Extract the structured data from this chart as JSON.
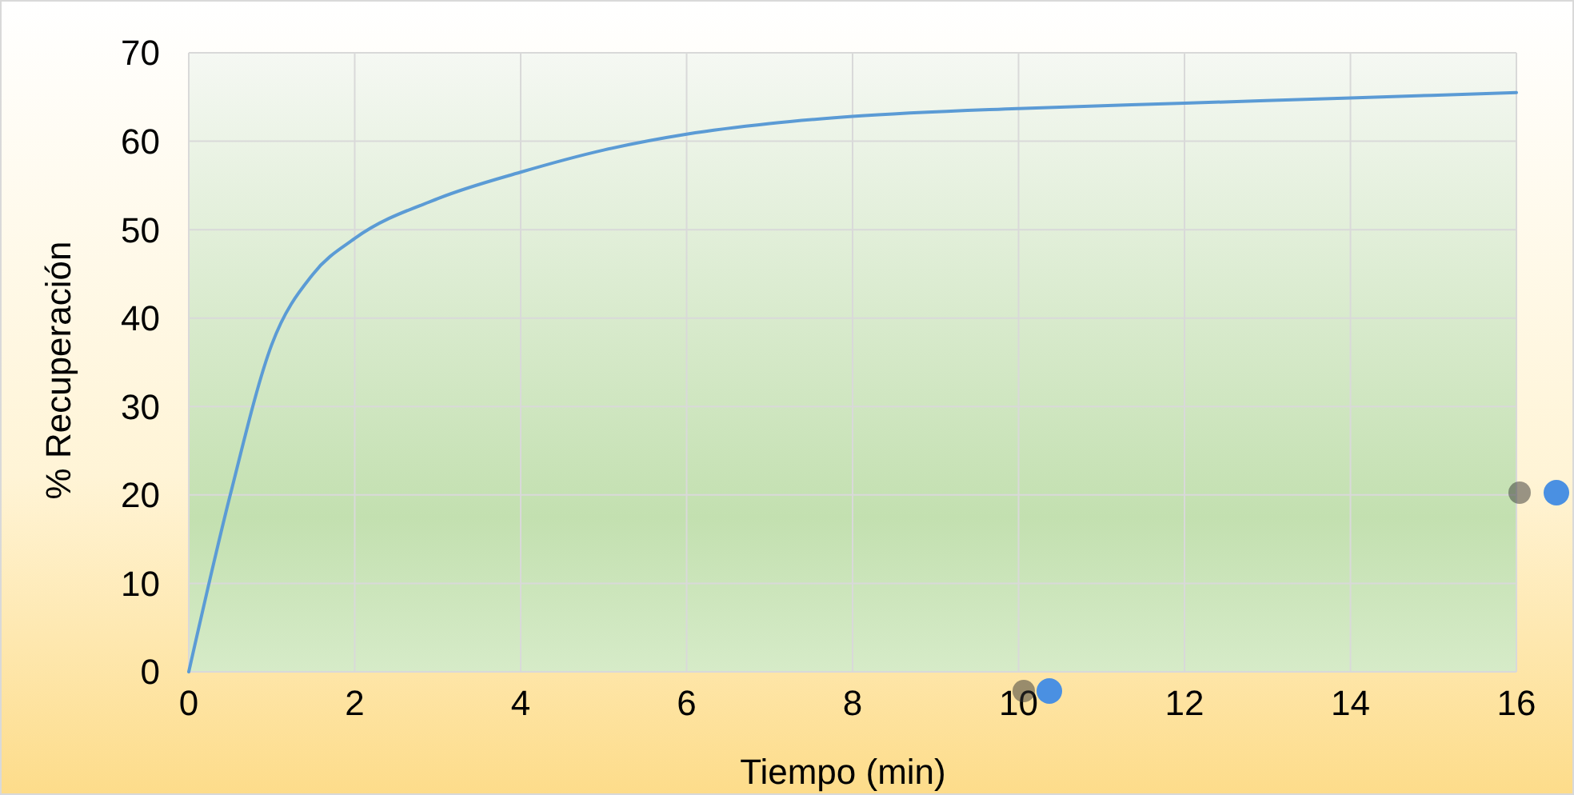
{
  "chart_data": {
    "type": "line",
    "xlabel": "Tiempo (min)",
    "ylabel": "% Recuperación",
    "x": [
      0,
      0.5,
      1,
      1.5,
      2,
      3,
      4,
      5,
      6,
      7,
      8,
      10,
      12,
      14,
      16
    ],
    "series": [
      {
        "color": "#5b9bd5",
        "values": [
          0,
          20,
          37,
          45,
          49,
          53.5,
          56.5,
          59,
          60.8,
          62,
          62.8,
          63.7,
          64.3,
          64.9,
          65.5
        ]
      }
    ],
    "xlim": [
      0,
      16
    ],
    "xticks": [
      0,
      2,
      4,
      6,
      8,
      10,
      12,
      14,
      16
    ],
    "ylim": [
      0,
      70
    ],
    "yticks": [
      0,
      10,
      20,
      30,
      40,
      50,
      60,
      70
    ],
    "grid": true,
    "marker": "none",
    "line_style": "solid"
  }
}
